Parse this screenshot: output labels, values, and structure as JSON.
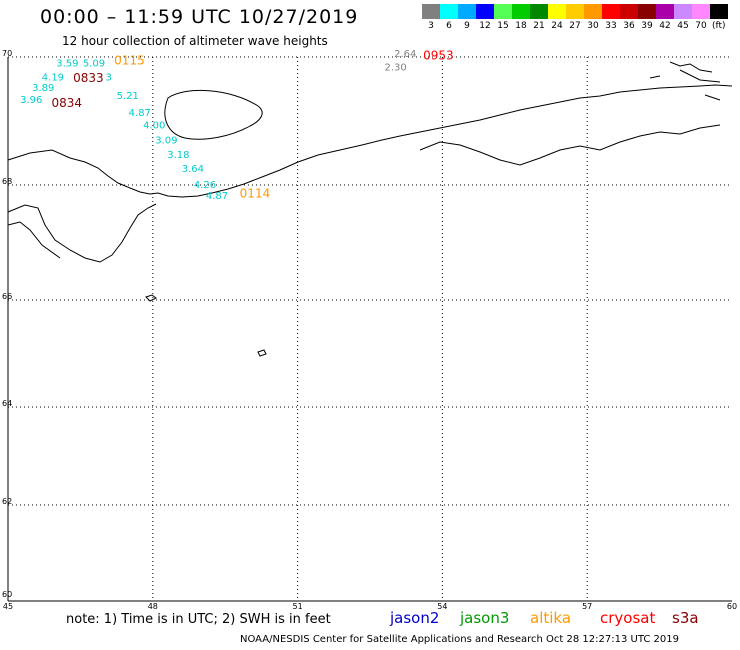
{
  "header": {
    "title": "00:00 – 11:59 UTC 10/27/2019",
    "subtitle": "12 hour collection of altimeter wave heights"
  },
  "color_scale": {
    "unit": "(ft)",
    "items": [
      {
        "label": "3",
        "color": "#808080"
      },
      {
        "label": "6",
        "color": "#00ffff"
      },
      {
        "label": "9",
        "color": "#00aaff"
      },
      {
        "label": "12",
        "color": "#0000ff"
      },
      {
        "label": "15",
        "color": "#55ff55"
      },
      {
        "label": "18",
        "color": "#00cc00"
      },
      {
        "label": "21",
        "color": "#008800"
      },
      {
        "label": "24",
        "color": "#ffff00"
      },
      {
        "label": "27",
        "color": "#ffcc00"
      },
      {
        "label": "30",
        "color": "#ff9900"
      },
      {
        "label": "33",
        "color": "#ff0000"
      },
      {
        "label": "36",
        "color": "#cc0000"
      },
      {
        "label": "39",
        "color": "#880000"
      },
      {
        "label": "42",
        "color": "#aa00aa"
      },
      {
        "label": "45",
        "color": "#cc88ff"
      },
      {
        "label": "70",
        "color": "#ff88ff"
      },
      {
        "label": "",
        "color": "#000000"
      }
    ]
  },
  "map": {
    "lon_labels": [
      "45",
      "48",
      "51",
      "54",
      "57",
      "60"
    ],
    "lat_labels": [
      "70",
      "68",
      "66",
      "64",
      "62",
      "60"
    ],
    "observations": [
      {
        "text": "3.59",
        "lon": 46.0,
        "lat": 69.85,
        "color": "#00cccc"
      },
      {
        "text": "5.09",
        "lon": 46.55,
        "lat": 69.85,
        "color": "#00cccc"
      },
      {
        "text": "4.19",
        "lon": 45.7,
        "lat": 69.63,
        "color": "#00cccc"
      },
      {
        "text": "3",
        "lon": 47.02,
        "lat": 69.63,
        "color": "#00cccc"
      },
      {
        "text": "3.89",
        "lon": 45.5,
        "lat": 69.47,
        "color": "#00cccc"
      },
      {
        "text": "3.96",
        "lon": 45.25,
        "lat": 69.28,
        "color": "#00cccc"
      },
      {
        "text": "5.21",
        "lon": 47.25,
        "lat": 69.34,
        "color": "#00cccc"
      },
      {
        "text": "4.87",
        "lon": 47.5,
        "lat": 69.08,
        "color": "#00cccc"
      },
      {
        "text": "4.00",
        "lon": 47.8,
        "lat": 68.88,
        "color": "#00cccc"
      },
      {
        "text": "3.09",
        "lon": 48.05,
        "lat": 68.65,
        "color": "#00cccc"
      },
      {
        "text": "3.18",
        "lon": 48.3,
        "lat": 68.42,
        "color": "#00cccc"
      },
      {
        "text": "3.64",
        "lon": 48.6,
        "lat": 68.2,
        "color": "#00cccc"
      },
      {
        "text": "4.26",
        "lon": 48.85,
        "lat": 67.95,
        "color": "#00cccc"
      },
      {
        "text": "4.87",
        "lon": 49.1,
        "lat": 67.76,
        "color": "#00cccc"
      },
      {
        "text": "2.64",
        "lon": 53.0,
        "lat": 70.0,
        "color": "#808080"
      },
      {
        "text": "2.30",
        "lon": 52.8,
        "lat": 69.79,
        "color": "#808080"
      }
    ],
    "pass_times": [
      {
        "text": "0115",
        "lon": 47.2,
        "lat": 69.88,
        "color": "#ff9900"
      },
      {
        "text": "0833",
        "lon": 46.35,
        "lat": 69.61,
        "color": "#880000"
      },
      {
        "text": "0834",
        "lon": 45.9,
        "lat": 69.22,
        "color": "#880000"
      },
      {
        "text": "0114",
        "lon": 49.8,
        "lat": 67.78,
        "color": "#ff9900"
      },
      {
        "text": "0953",
        "lon": 53.6,
        "lat": 69.96,
        "color": "#ff0000"
      }
    ]
  },
  "footer": {
    "note": "note: 1) Time is in UTC; 2) SWH is in feet",
    "satellites": [
      {
        "name": "jason2",
        "color": "#0000cc"
      },
      {
        "name": "jason3",
        "color": "#009900"
      },
      {
        "name": "altika",
        "color": "#ff9900"
      },
      {
        "name": "cryosat",
        "color": "#ff0000"
      },
      {
        "name": "s3a",
        "color": "#880000"
      }
    ],
    "credit": "NOAA/NESDIS Center for Satellite Applications and Research   Oct 28 12:27:13 UTC 2019"
  }
}
